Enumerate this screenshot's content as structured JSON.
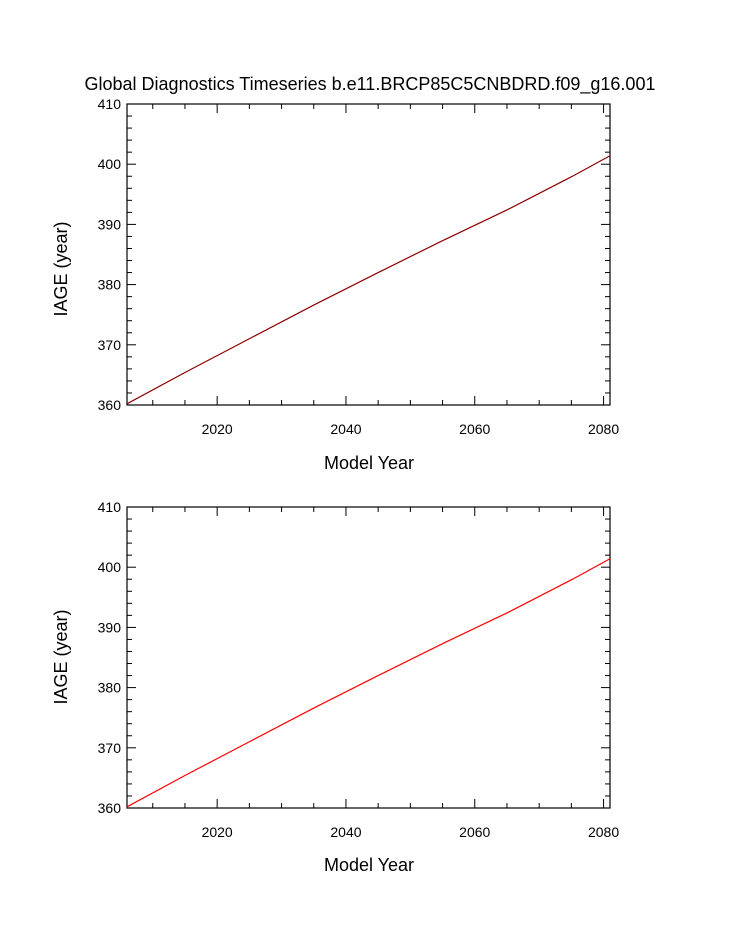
{
  "title": "Global Diagnostics Timeseries b.e11.BRCP85C5CNBDRD.f09_g16.001",
  "chart_data": [
    {
      "type": "line",
      "xlabel": "Model Year",
      "ylabel": "IAGE (year)",
      "xlim": [
        2006,
        2081
      ],
      "ylim": [
        360,
        410
      ],
      "xticks": [
        "2020",
        "2040",
        "2060",
        "2080"
      ],
      "yticks": [
        "360",
        "370",
        "380",
        "390",
        "400",
        "410"
      ],
      "series": [
        {
          "color": "#8b0000",
          "x": [
            2006,
            2015,
            2025,
            2035,
            2045,
            2055,
            2065,
            2075,
            2081
          ],
          "y": [
            360.2,
            365.4,
            371.0,
            376.6,
            382.0,
            387.3,
            392.4,
            397.9,
            401.4
          ]
        }
      ]
    },
    {
      "type": "line",
      "xlabel": "Model Year",
      "ylabel": "IAGE (year)",
      "xlim": [
        2006,
        2081
      ],
      "ylim": [
        360,
        410
      ],
      "xticks": [
        "2020",
        "2040",
        "2060",
        "2080"
      ],
      "yticks": [
        "360",
        "370",
        "380",
        "390",
        "400",
        "410"
      ],
      "series": [
        {
          "color": "#ff0000",
          "x": [
            2006,
            2015,
            2025,
            2035,
            2045,
            2055,
            2065,
            2075,
            2081
          ],
          "y": [
            360.2,
            365.4,
            371.0,
            376.6,
            382.0,
            387.3,
            392.4,
            397.9,
            401.4
          ]
        }
      ]
    }
  ]
}
